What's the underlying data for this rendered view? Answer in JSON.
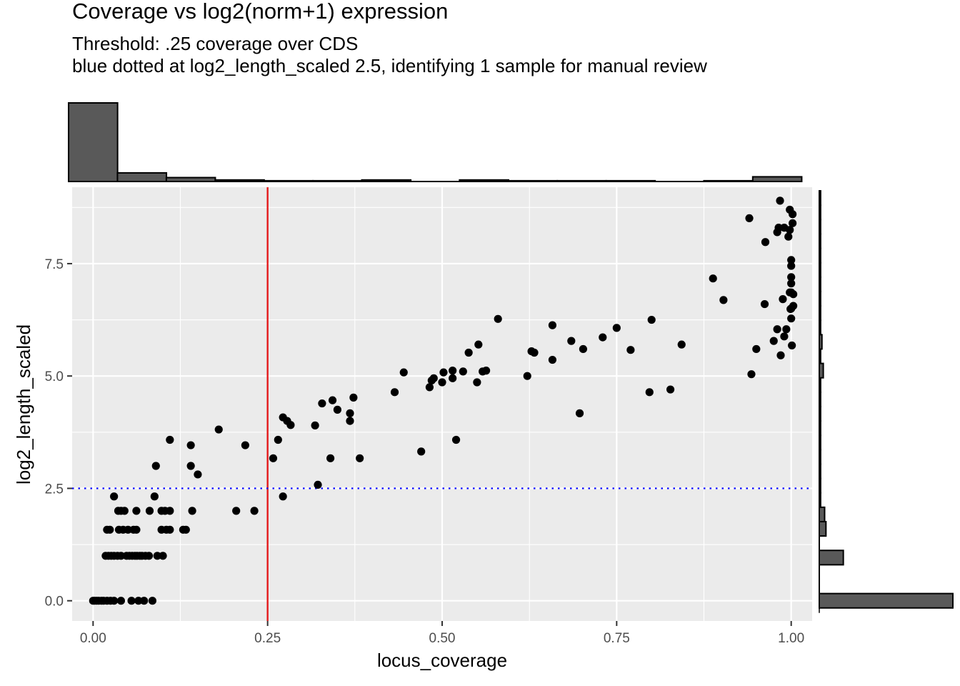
{
  "chart_data": {
    "type": "scatter",
    "title": "Coverage vs log2(norm+1) expression",
    "subtitle_lines": [
      "Threshold: .25 coverage over CDS",
      "blue dotted at log2_length_scaled 2.5, identifying 1 sample for manual review"
    ],
    "xlabel": "locus_coverage",
    "ylabel": "log2_length_scaled",
    "xlim": [
      -0.03,
      1.03
    ],
    "ylim": [
      -0.45,
      9.2
    ],
    "x_ticks": [
      0,
      0.25,
      0.5,
      0.75,
      1.0
    ],
    "x_tick_labels": [
      "0.00",
      "0.25",
      "0.50",
      "0.75",
      "1.00"
    ],
    "y_ticks": [
      0,
      2.5,
      5.0,
      7.5
    ],
    "y_tick_labels": [
      "0.0",
      "2.5",
      "5.0",
      "7.5"
    ],
    "grid": true,
    "colors": {
      "panel_bg": "#ebebeb",
      "grid": "#ffffff",
      "points": "#000000",
      "threshold_line": "#e41a1c",
      "dotted_line": "#0000ff",
      "histogram_fill": "#595959"
    },
    "vline": {
      "x": 0.25,
      "color": "red",
      "style": "solid"
    },
    "hline": {
      "y": 2.5,
      "color": "blue",
      "style": "dotted"
    },
    "points": [
      {
        "x": 0.0,
        "y": 0
      },
      {
        "x": 0.002,
        "y": 0
      },
      {
        "x": 0.005,
        "y": 0
      },
      {
        "x": 0.008,
        "y": 0
      },
      {
        "x": 0.012,
        "y": 0
      },
      {
        "x": 0.015,
        "y": 0
      },
      {
        "x": 0.02,
        "y": 0
      },
      {
        "x": 0.025,
        "y": 0
      },
      {
        "x": 0.03,
        "y": 0
      },
      {
        "x": 0.04,
        "y": 0
      },
      {
        "x": 0.055,
        "y": 0
      },
      {
        "x": 0.065,
        "y": 0
      },
      {
        "x": 0.073,
        "y": 0
      },
      {
        "x": 0.085,
        "y": 0
      },
      {
        "x": 0.018,
        "y": 1
      },
      {
        "x": 0.022,
        "y": 1
      },
      {
        "x": 0.026,
        "y": 1
      },
      {
        "x": 0.03,
        "y": 1
      },
      {
        "x": 0.035,
        "y": 1
      },
      {
        "x": 0.04,
        "y": 1
      },
      {
        "x": 0.048,
        "y": 1
      },
      {
        "x": 0.052,
        "y": 1
      },
      {
        "x": 0.056,
        "y": 1
      },
      {
        "x": 0.06,
        "y": 1
      },
      {
        "x": 0.063,
        "y": 1
      },
      {
        "x": 0.067,
        "y": 1
      },
      {
        "x": 0.07,
        "y": 1
      },
      {
        "x": 0.075,
        "y": 1
      },
      {
        "x": 0.08,
        "y": 1
      },
      {
        "x": 0.092,
        "y": 1
      },
      {
        "x": 0.1,
        "y": 1
      },
      {
        "x": 0.02,
        "y": 1.58
      },
      {
        "x": 0.024,
        "y": 1.58
      },
      {
        "x": 0.037,
        "y": 1.58
      },
      {
        "x": 0.043,
        "y": 1.58
      },
      {
        "x": 0.05,
        "y": 1.58
      },
      {
        "x": 0.058,
        "y": 1.58
      },
      {
        "x": 0.062,
        "y": 1.58
      },
      {
        "x": 0.098,
        "y": 1.58
      },
      {
        "x": 0.105,
        "y": 1.58
      },
      {
        "x": 0.11,
        "y": 1.58
      },
      {
        "x": 0.129,
        "y": 1.58
      },
      {
        "x": 0.133,
        "y": 1.58
      },
      {
        "x": 0.036,
        "y": 2
      },
      {
        "x": 0.04,
        "y": 2
      },
      {
        "x": 0.045,
        "y": 2
      },
      {
        "x": 0.062,
        "y": 2
      },
      {
        "x": 0.081,
        "y": 2
      },
      {
        "x": 0.098,
        "y": 2
      },
      {
        "x": 0.103,
        "y": 2
      },
      {
        "x": 0.11,
        "y": 2
      },
      {
        "x": 0.142,
        "y": 2
      },
      {
        "x": 0.205,
        "y": 2
      },
      {
        "x": 0.231,
        "y": 2
      },
      {
        "x": 0.03,
        "y": 2.32
      },
      {
        "x": 0.088,
        "y": 2.32
      },
      {
        "x": 0.272,
        "y": 2.32
      },
      {
        "x": 0.09,
        "y": 3.0
      },
      {
        "x": 0.11,
        "y": 3.58
      },
      {
        "x": 0.14,
        "y": 3.0
      },
      {
        "x": 0.14,
        "y": 3.46
      },
      {
        "x": 0.15,
        "y": 2.81
      },
      {
        "x": 0.18,
        "y": 3.81
      },
      {
        "x": 0.218,
        "y": 3.46
      },
      {
        "x": 0.258,
        "y": 3.17
      },
      {
        "x": 0.265,
        "y": 3.58
      },
      {
        "x": 0.272,
        "y": 4.08
      },
      {
        "x": 0.278,
        "y": 4.0
      },
      {
        "x": 0.283,
        "y": 3.91
      },
      {
        "x": 0.318,
        "y": 3.9
      },
      {
        "x": 0.322,
        "y": 2.58
      },
      {
        "x": 0.328,
        "y": 4.39
      },
      {
        "x": 0.34,
        "y": 3.17
      },
      {
        "x": 0.343,
        "y": 4.46
      },
      {
        "x": 0.35,
        "y": 4.25
      },
      {
        "x": 0.368,
        "y": 4.0
      },
      {
        "x": 0.368,
        "y": 4.17
      },
      {
        "x": 0.373,
        "y": 4.52
      },
      {
        "x": 0.382,
        "y": 3.17
      },
      {
        "x": 0.432,
        "y": 4.64
      },
      {
        "x": 0.445,
        "y": 5.08
      },
      {
        "x": 0.47,
        "y": 3.32
      },
      {
        "x": 0.482,
        "y": 4.75
      },
      {
        "x": 0.485,
        "y": 4.9
      },
      {
        "x": 0.488,
        "y": 4.95
      },
      {
        "x": 0.5,
        "y": 4.86
      },
      {
        "x": 0.502,
        "y": 5.08
      },
      {
        "x": 0.515,
        "y": 5.12
      },
      {
        "x": 0.515,
        "y": 4.95
      },
      {
        "x": 0.52,
        "y": 3.58
      },
      {
        "x": 0.53,
        "y": 5.1
      },
      {
        "x": 0.538,
        "y": 5.52
      },
      {
        "x": 0.55,
        "y": 4.86
      },
      {
        "x": 0.552,
        "y": 5.7
      },
      {
        "x": 0.558,
        "y": 5.1
      },
      {
        "x": 0.563,
        "y": 5.12
      },
      {
        "x": 0.58,
        "y": 6.27
      },
      {
        "x": 0.622,
        "y": 5.0
      },
      {
        "x": 0.628,
        "y": 5.55
      },
      {
        "x": 0.632,
        "y": 5.52
      },
      {
        "x": 0.658,
        "y": 6.13
      },
      {
        "x": 0.658,
        "y": 5.36
      },
      {
        "x": 0.685,
        "y": 5.78
      },
      {
        "x": 0.697,
        "y": 4.17
      },
      {
        "x": 0.702,
        "y": 5.6
      },
      {
        "x": 0.73,
        "y": 5.86
      },
      {
        "x": 0.75,
        "y": 6.07
      },
      {
        "x": 0.77,
        "y": 5.58
      },
      {
        "x": 0.797,
        "y": 4.64
      },
      {
        "x": 0.8,
        "y": 6.25
      },
      {
        "x": 0.827,
        "y": 4.7
      },
      {
        "x": 0.843,
        "y": 5.7
      },
      {
        "x": 0.888,
        "y": 7.17
      },
      {
        "x": 0.903,
        "y": 6.69
      },
      {
        "x": 0.94,
        "y": 8.51
      },
      {
        "x": 0.943,
        "y": 5.04
      },
      {
        "x": 0.95,
        "y": 5.6
      },
      {
        "x": 0.962,
        "y": 6.6
      },
      {
        "x": 0.963,
        "y": 7.98
      },
      {
        "x": 0.975,
        "y": 5.78
      },
      {
        "x": 0.98,
        "y": 6.04
      },
      {
        "x": 0.98,
        "y": 8.2
      },
      {
        "x": 0.982,
        "y": 8.3
      },
      {
        "x": 0.984,
        "y": 8.9
      },
      {
        "x": 0.985,
        "y": 5.46
      },
      {
        "x": 0.988,
        "y": 6.71
      },
      {
        "x": 0.99,
        "y": 5.88
      },
      {
        "x": 0.99,
        "y": 8.3
      },
      {
        "x": 0.993,
        "y": 6.04
      },
      {
        "x": 0.996,
        "y": 8.1
      },
      {
        "x": 0.998,
        "y": 8.7
      },
      {
        "x": 0.998,
        "y": 6.86
      },
      {
        "x": 0.998,
        "y": 8.25
      },
      {
        "x": 0.999,
        "y": 6.49
      },
      {
        "x": 1.0,
        "y": 7.58
      },
      {
        "x": 1.0,
        "y": 7.45
      },
      {
        "x": 1.0,
        "y": 7.2
      },
      {
        "x": 1.0,
        "y": 7.06
      },
      {
        "x": 1.0,
        "y": 6.86
      },
      {
        "x": 1.0,
        "y": 6.28
      },
      {
        "x": 1.0,
        "y": 6.5
      },
      {
        "x": 1.001,
        "y": 5.68
      },
      {
        "x": 1.002,
        "y": 8.6
      },
      {
        "x": 1.002,
        "y": 8.4
      },
      {
        "x": 1.003,
        "y": 6.82
      },
      {
        "x": 1.003,
        "y": 6.56
      }
    ],
    "x_histogram": {
      "bin_width": 0.0702,
      "bin_centers": [
        0.0,
        0.07,
        0.14,
        0.21,
        0.28,
        0.35,
        0.42,
        0.49,
        0.56,
        0.63,
        0.7,
        0.77,
        0.84,
        0.91,
        0.98
      ],
      "counts": [
        100,
        11,
        5,
        2,
        1,
        1,
        2,
        0,
        2,
        1,
        1,
        1,
        0,
        1,
        6
      ]
    },
    "y_histogram": {
      "bin_width": 0.32,
      "bin_centers": [
        0.0,
        0.32,
        0.64,
        0.96,
        1.28,
        1.6,
        1.92,
        2.24,
        2.56,
        2.88,
        3.2,
        3.52,
        3.84,
        4.16,
        4.48,
        4.8,
        5.12,
        5.44,
        5.76,
        6.08,
        6.4,
        6.72,
        7.04,
        7.36,
        7.68,
        8.0,
        8.32,
        8.64,
        8.96
      ],
      "counts": [
        100,
        0,
        0,
        18,
        0,
        5,
        4,
        1,
        1,
        1,
        1,
        1,
        1,
        1,
        1,
        1,
        3,
        1,
        2,
        1,
        1,
        1,
        1,
        1,
        1,
        1,
        1,
        1,
        1
      ]
    }
  }
}
